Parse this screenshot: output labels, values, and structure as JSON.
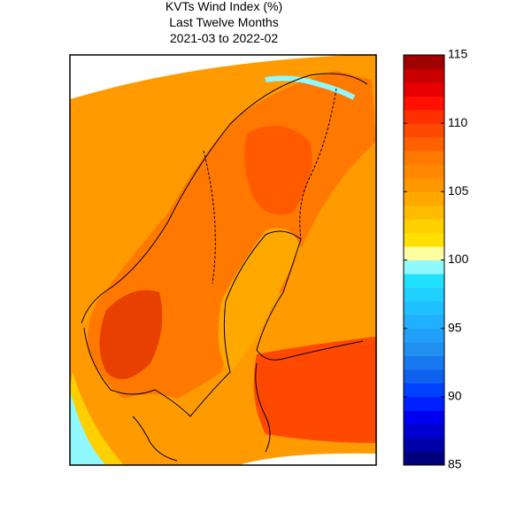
{
  "title": [
    "KVTs Wind Index (%)",
    "Last Twelve Months",
    "2021-03 to 2022-02"
  ],
  "colorbar": {
    "levels": [
      85,
      86,
      87,
      88,
      89,
      90,
      91,
      92,
      93,
      94,
      95,
      96,
      97,
      98,
      99,
      100,
      101,
      102,
      103,
      104,
      105,
      106,
      107,
      108,
      109,
      110,
      111,
      112,
      113,
      114,
      115
    ],
    "colors": [
      "#00007f",
      "#0000a8",
      "#0000d0",
      "#0000f0",
      "#0020ff",
      "#0040ff",
      "#1060f0",
      "#1878f0",
      "#2090f0",
      "#20a0f8",
      "#20b0ff",
      "#20c0ff",
      "#20d0ff",
      "#20e0ff",
      "#90f8ff",
      "#ffffa0",
      "#ffe000",
      "#ffd000",
      "#ffbb00",
      "#ffa800",
      "#ff9800",
      "#ff8800",
      "#ff7800",
      "#ff6000",
      "#ff4800",
      "#ff3000",
      "#ff1000",
      "#e80000",
      "#c80000",
      "#a00000"
    ],
    "ticks": [
      85,
      90,
      95,
      100,
      105,
      110,
      115
    ]
  }
}
